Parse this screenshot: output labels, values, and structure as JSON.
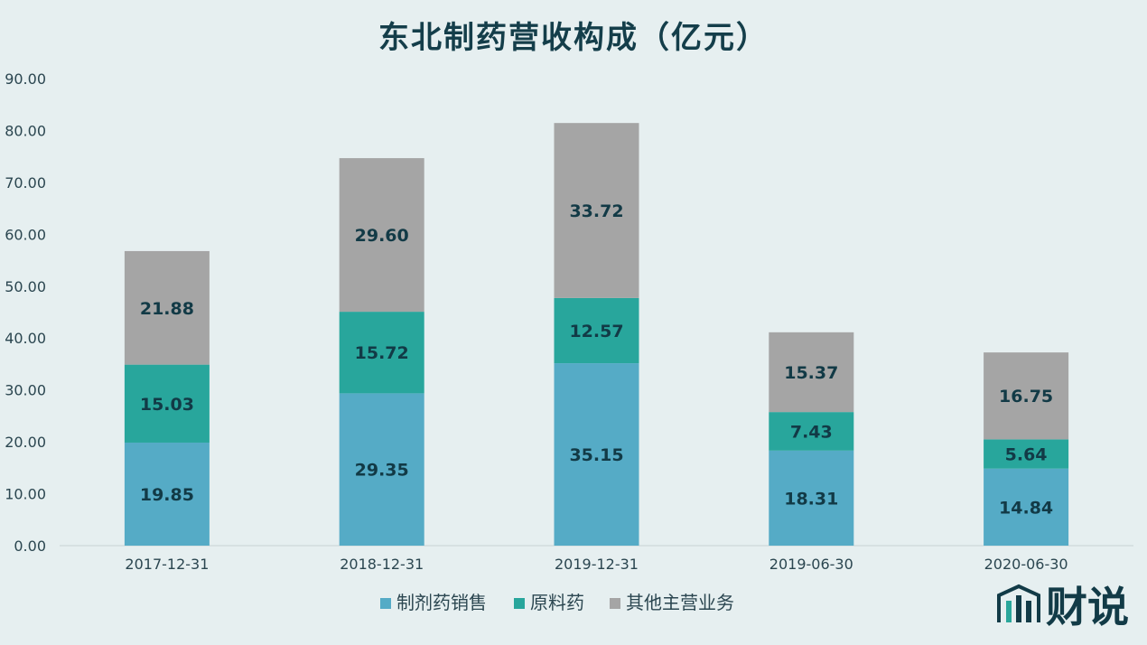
{
  "chart_data": {
    "type": "bar",
    "stacked": true,
    "title": "东北制药营收构成（亿元）",
    "categories": [
      "2017-12-31",
      "2018-12-31",
      "2019-12-31",
      "2019-06-30",
      "2020-06-30"
    ],
    "series": [
      {
        "name": "制剂药销售",
        "color": "#55abc6",
        "values": [
          19.85,
          29.35,
          35.15,
          18.31,
          14.84
        ]
      },
      {
        "name": "原料药",
        "color": "#28a69c",
        "values": [
          15.03,
          15.72,
          12.57,
          7.43,
          5.64
        ]
      },
      {
        "name": "其他主营业务",
        "color": "#a5a5a5",
        "values": [
          21.88,
          29.6,
          33.72,
          15.37,
          16.75
        ]
      }
    ],
    "data_labels": [
      [
        "19.85",
        "29.35",
        "35.15",
        "18.31",
        "14.84"
      ],
      [
        "15.03",
        "15.72",
        "12.57",
        "7.43",
        "5.64"
      ],
      [
        "21.88",
        "29.60",
        "33.72",
        "15.37",
        "16.75"
      ]
    ],
    "y_ticks": [
      "0.00",
      "10.00",
      "20.00",
      "30.00",
      "40.00",
      "50.00",
      "60.00",
      "70.00",
      "80.00",
      "90.00"
    ],
    "ylim": [
      0,
      90
    ],
    "grid": false,
    "legend_position": "bottom"
  },
  "logo": {
    "text": "财说"
  }
}
